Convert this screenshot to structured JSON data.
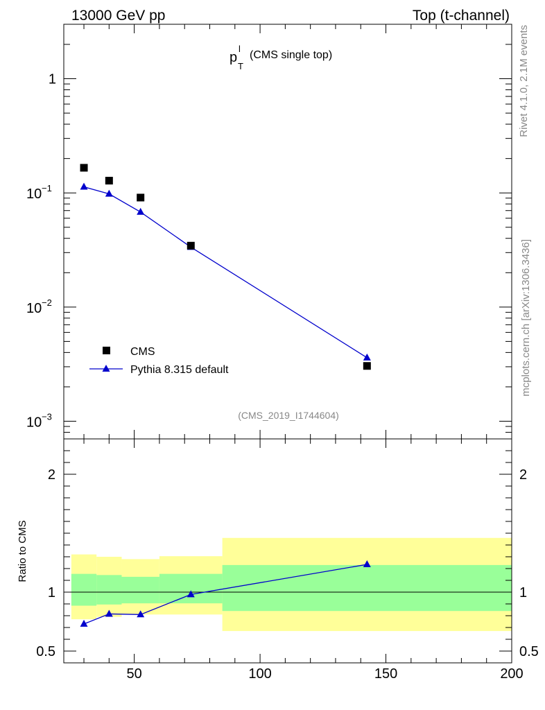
{
  "header": {
    "left": "13000 GeV pp",
    "right": "Top (t-channel)"
  },
  "side": {
    "rivet": "Rivet 4.1.0,  2.1M events",
    "mcplots": "mcplots.cern.ch [arXiv:1306.3436]"
  },
  "chart_data": {
    "type": "scatter",
    "title": {
      "main": "p",
      "sup": "l",
      "sub": "T",
      "rest": "(CMS single top)"
    },
    "analysis_id": "(CMS_2019_I1744604)",
    "xlim": [
      22,
      200
    ],
    "x_ticks": [
      50,
      100,
      150,
      200
    ],
    "x_tick_labels": [
      "50",
      "100",
      "150",
      "200"
    ],
    "main": {
      "yscale": "log",
      "ylim": [
        0.0007,
        3.0
      ],
      "y_ticks": [
        {
          "value": 1,
          "base": "1",
          "exp": ""
        },
        {
          "value": 0.1,
          "base": "10",
          "exp": "−1"
        },
        {
          "value": 0.01,
          "base": "10",
          "exp": "−2"
        },
        {
          "value": 0.001,
          "base": "10",
          "exp": "−3"
        }
      ],
      "series": [
        {
          "name": "CMS",
          "marker": "square",
          "color": "#000000",
          "x": [
            30,
            40,
            52.5,
            72.5,
            142.5
          ],
          "y": [
            0.166,
            0.128,
            0.091,
            0.0345,
            0.00305
          ]
        },
        {
          "name": "Pythia 8.315 default",
          "marker": "triangle",
          "color": "#0000cc",
          "x": [
            30,
            40,
            52.5,
            72.5,
            142.5
          ],
          "y": [
            0.113,
            0.098,
            0.068,
            0.0335,
            0.0036
          ]
        }
      ]
    },
    "ratio": {
      "ylabel": "Ratio to CMS",
      "ylim": [
        0.4,
        2.3
      ],
      "y_ticks": [
        0.5,
        1,
        2
      ],
      "y_tick_labels": [
        "0.5",
        "1",
        "2"
      ],
      "bands": [
        {
          "xlo": 25,
          "xhi": 35,
          "inner": [
            0.885,
            1.155
          ],
          "outer": [
            0.77,
            1.32
          ]
        },
        {
          "xlo": 35,
          "xhi": 45,
          "inner": [
            0.895,
            1.145
          ],
          "outer": [
            0.79,
            1.3
          ]
        },
        {
          "xlo": 45,
          "xhi": 60,
          "inner": [
            0.905,
            1.13
          ],
          "outer": [
            0.81,
            1.28
          ]
        },
        {
          "xlo": 60,
          "xhi": 85,
          "inner": [
            0.905,
            1.155
          ],
          "outer": [
            0.81,
            1.305
          ]
        },
        {
          "xlo": 85,
          "xhi": 200,
          "inner": [
            0.84,
            1.23
          ],
          "outer": [
            0.67,
            1.46
          ]
        }
      ],
      "band_colors": {
        "inner": "#99ff99",
        "outer": "#ffff99"
      },
      "series": [
        {
          "name": "Pythia 8.315 default",
          "color": "#0000cc",
          "x": [
            30,
            40,
            52.5,
            72.5,
            142.5
          ],
          "y": [
            0.73,
            0.815,
            0.81,
            0.98,
            1.235
          ]
        }
      ]
    }
  }
}
